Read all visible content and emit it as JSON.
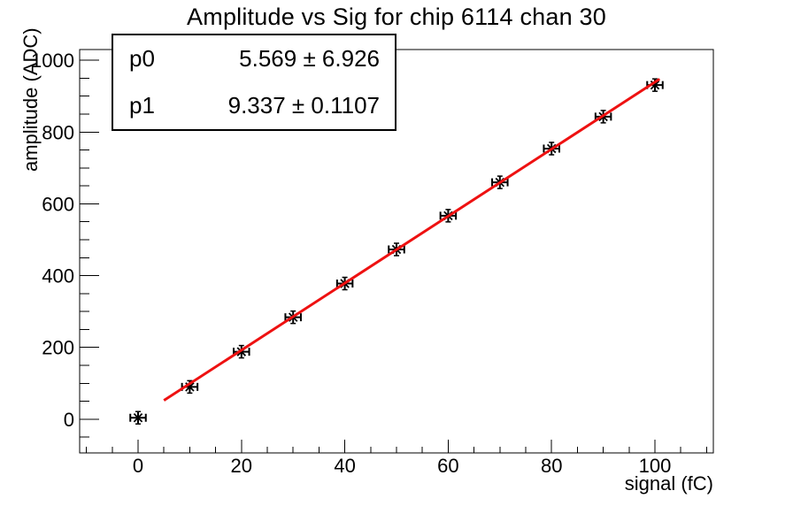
{
  "stats": {
    "rows": [
      {
        "label": "p0",
        "value": "5.569 ± 6.926"
      },
      {
        "label": "p1",
        "value": "9.337 ± 0.1107"
      }
    ]
  },
  "chart_data": {
    "type": "scatter",
    "title": "Amplitude vs Sig for chip 6114 chan 30",
    "xlabel": "signal (fC)",
    "ylabel": "amplitude (ADC)",
    "x": [
      0,
      10,
      20,
      30,
      40,
      50,
      60,
      70,
      80,
      90,
      100
    ],
    "y": [
      4,
      90,
      188,
      284,
      378,
      473,
      567,
      660,
      754,
      843,
      931
    ],
    "x_err": 1.5,
    "xlim": [
      -11.3,
      111.3
    ],
    "ylim": [
      -94,
      1030
    ],
    "x_major_ticks": [
      0,
      20,
      40,
      60,
      80,
      100
    ],
    "x_minor_step": 5,
    "y_major_ticks": [
      0,
      200,
      400,
      600,
      800,
      1000
    ],
    "y_minor_step": 50,
    "grid": false,
    "legend": "none",
    "fit": {
      "p0": 5.569,
      "p1": 9.337,
      "x_start": 5,
      "x_end": 100.9
    },
    "colors": {
      "fit_line": "#ee1111",
      "marker": "#000000",
      "axis": "#000000"
    }
  }
}
